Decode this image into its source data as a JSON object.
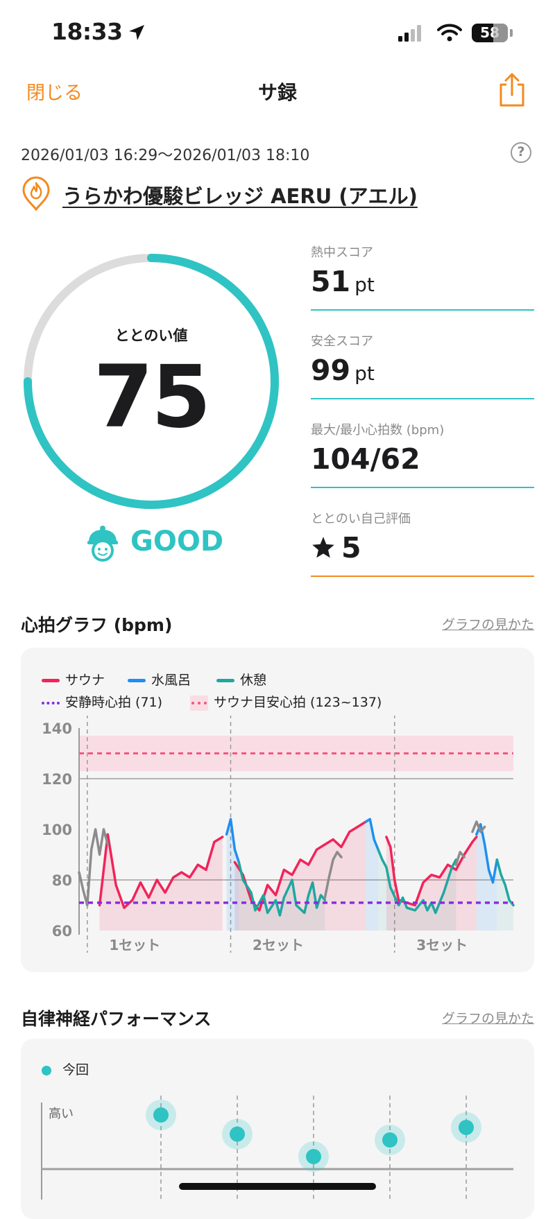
{
  "status_bar": {
    "time": "18:33",
    "battery": "58"
  },
  "nav": {
    "close_label": "閉じる",
    "title": "サ録"
  },
  "record": {
    "date_range": "2026/01/03 16:29～2026/01/03 18:10",
    "facility": "うらかわ優駿ビレッジ AERU (アエル)"
  },
  "gauge": {
    "label": "ととのい値",
    "value": "75",
    "percent": 75,
    "rating": "GOOD"
  },
  "metrics": [
    {
      "label": "熱中スコア",
      "value": "51",
      "unit": "pt"
    },
    {
      "label": "安全スコア",
      "value": "99",
      "unit": "pt"
    },
    {
      "label": "最大/最小心拍数 (bpm)",
      "value": "104/62",
      "unit": ""
    },
    {
      "label": "ととのい自己評価",
      "value": "5",
      "unit": ""
    }
  ],
  "hr_section": {
    "title": "心拍グラフ (bpm)",
    "link": "グラフの見かた"
  },
  "ans_section": {
    "title": "自律神経パフォーマンス",
    "link": "グラフの見かた",
    "legend": "今回",
    "y_label": "高い"
  },
  "colors": {
    "accent": "#2fc3c3",
    "orange": "#f28a1e",
    "sauna": "#f0245a",
    "water": "#1e8ff0",
    "rest": "#1fa7a0",
    "resting": "#8a2be2",
    "target": "#f5567f"
  },
  "chart_data": [
    {
      "type": "line",
      "title": "心拍グラフ (bpm)",
      "ylim": [
        60,
        140
      ],
      "yticks": [
        60,
        80,
        100,
        120,
        140
      ],
      "legend": [
        "サウナ",
        "水風呂",
        "休憩",
        "安静時心拍 (71)",
        "サウナ目安心拍 (123~137)"
      ],
      "resting_hr": 71,
      "target_band": [
        123,
        137
      ],
      "target_line": 130,
      "sets": [
        "1セット",
        "2セット",
        "3セット"
      ],
      "series": [
        {
          "name": "サウナ",
          "segments": [
            [
              [
                5,
                70
              ],
              [
                7,
                98
              ],
              [
                8,
                88
              ],
              [
                9,
                78
              ],
              [
                11,
                69
              ],
              [
                13,
                72
              ],
              [
                15,
                79
              ],
              [
                17,
                73
              ],
              [
                19,
                80
              ],
              [
                21,
                75
              ],
              [
                23,
                81
              ],
              [
                25,
                83
              ],
              [
                27,
                81
              ],
              [
                29,
                86
              ],
              [
                31,
                84
              ],
              [
                33,
                95
              ],
              [
                35,
                97
              ]
            ],
            [
              [
                38,
                87
              ],
              [
                40,
                82
              ],
              [
                42,
                72
              ],
              [
                44,
                68
              ],
              [
                46,
                78
              ],
              [
                48,
                74
              ],
              [
                50,
                84
              ],
              [
                52,
                82
              ],
              [
                54,
                88
              ],
              [
                56,
                86
              ],
              [
                58,
                92
              ],
              [
                60,
                94
              ],
              [
                62,
                96
              ],
              [
                64,
                93
              ],
              [
                66,
                99
              ],
              [
                68,
                101
              ],
              [
                70,
                103
              ]
            ],
            [
              [
                75,
                97
              ],
              [
                76,
                93
              ],
              [
                77,
                80
              ],
              [
                78,
                72
              ],
              [
                80,
                71
              ],
              [
                82,
                70
              ],
              [
                84,
                79
              ],
              [
                86,
                82
              ],
              [
                88,
                81
              ],
              [
                90,
                86
              ],
              [
                92,
                84
              ],
              [
                94,
                90
              ],
              [
                96,
                95
              ],
              [
                97,
                97
              ]
            ]
          ]
        },
        {
          "name": "水風呂",
          "segments": [
            [
              [
                36,
                98
              ],
              [
                37,
                104
              ],
              [
                38,
                92
              ],
              [
                39,
                87
              ]
            ],
            [
              [
                70,
                103
              ],
              [
                71,
                104
              ],
              [
                72,
                96
              ],
              [
                73,
                92
              ]
            ],
            [
              [
                97,
                98
              ],
              [
                98,
                102
              ],
              [
                99,
                94
              ],
              [
                100,
                84
              ],
              [
                101,
                79
              ],
              [
                102,
                88
              ]
            ]
          ]
        },
        {
          "name": "休憩",
          "segments": [
            [
              [
                39,
                87
              ],
              [
                40,
                80
              ],
              [
                42,
                75
              ],
              [
                43,
                68
              ],
              [
                45,
                74
              ],
              [
                46,
                67
              ],
              [
                48,
                72
              ],
              [
                49,
                66
              ],
              [
                50,
                73
              ],
              [
                52,
                80
              ],
              [
                53,
                70
              ],
              [
                55,
                67
              ],
              [
                56,
                74
              ],
              [
                57,
                79
              ],
              [
                58,
                69
              ],
              [
                59,
                74
              ],
              [
                60,
                72
              ]
            ],
            [
              [
                73,
                92
              ],
              [
                74,
                88
              ],
              [
                75,
                85
              ],
              [
                76,
                77
              ],
              [
                78,
                70
              ],
              [
                79,
                73
              ],
              [
                80,
                69
              ],
              [
                82,
                68
              ],
              [
                84,
                72
              ],
              [
                85,
                68
              ],
              [
                86,
                71
              ],
              [
                87,
                67
              ],
              [
                89,
                75
              ],
              [
                90,
                80
              ],
              [
                91,
                85
              ],
              [
                92,
                88
              ]
            ],
            [
              [
                102,
                88
              ],
              [
                103,
                82
              ],
              [
                104,
                78
              ],
              [
                105,
                72
              ],
              [
                106,
                70
              ]
            ]
          ]
        },
        {
          "name": "other",
          "segments": [
            [
              [
                0,
                83
              ],
              [
                1,
                76
              ],
              [
                2,
                70
              ],
              [
                3,
                92
              ],
              [
                4,
                100
              ],
              [
                5,
                90
              ],
              [
                6,
                100
              ],
              [
                7,
                94
              ]
            ],
            [
              [
                60,
                73
              ],
              [
                61,
                81
              ],
              [
                62,
                88
              ],
              [
                63,
                91
              ],
              [
                64,
                89
              ]
            ],
            [
              [
                92,
                86
              ],
              [
                93,
                91
              ],
              [
                94,
                89
              ]
            ],
            [
              [
                96,
                99
              ],
              [
                97,
                103
              ],
              [
                98,
                99
              ],
              [
                99,
                101
              ]
            ]
          ]
        }
      ]
    },
    {
      "type": "scatter",
      "title": "自律神経パフォーマンス",
      "series": [
        {
          "name": "今回",
          "values": [
            0.85,
            0.62,
            0.35,
            0.55,
            0.7
          ]
        }
      ]
    }
  ]
}
